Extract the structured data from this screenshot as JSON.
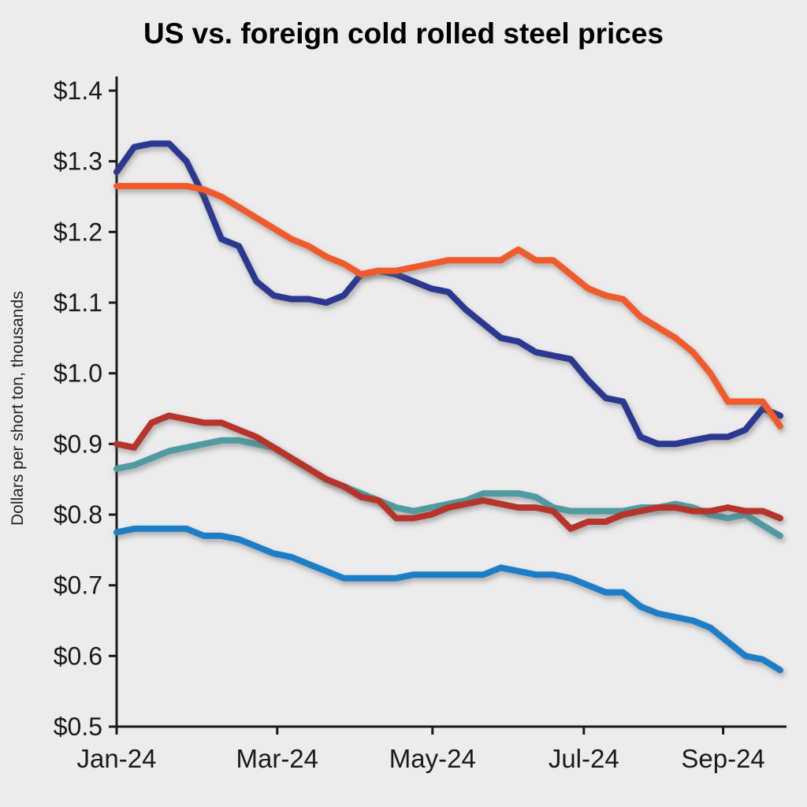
{
  "chart_data": {
    "type": "line",
    "title": "US vs. foreign cold rolled steel prices",
    "ylabel": "Dollars per short ton, thousands",
    "xlabel": "",
    "ylim": [
      0.5,
      1.4
    ],
    "grid": false,
    "legend": "none",
    "background_color": "#ececec",
    "axis_color": "#1a1a1a",
    "text_color": "#1a1a1a",
    "x_count": 39,
    "x_ticks": [
      {
        "label": "Jan-24",
        "pos": 0.0
      },
      {
        "label": "Mar-24",
        "pos": 0.242
      },
      {
        "label": "May-24",
        "pos": 0.476
      },
      {
        "label": "Jul-24",
        "pos": 0.704
      },
      {
        "label": "Sep-24",
        "pos": 0.914
      }
    ],
    "y_ticks": [
      {
        "label": "$0.5",
        "value": 0.5
      },
      {
        "label": "$0.6",
        "value": 0.6
      },
      {
        "label": "$0.7",
        "value": 0.7
      },
      {
        "label": "$0.8",
        "value": 0.8
      },
      {
        "label": "$0.9",
        "value": 0.9
      },
      {
        "label": "$1.0",
        "value": 1.0
      },
      {
        "label": "$1.1",
        "value": 1.1
      },
      {
        "label": "$1.2",
        "value": 1.2
      },
      {
        "label": "$1.3",
        "value": 1.3
      },
      {
        "label": "$1.4",
        "value": 1.4
      }
    ],
    "series": [
      {
        "name": "blue-line",
        "color": "#1d7fc6",
        "values": [
          0.775,
          0.78,
          0.78,
          0.78,
          0.78,
          0.77,
          0.77,
          0.765,
          0.755,
          0.745,
          0.74,
          0.73,
          0.72,
          0.71,
          0.71,
          0.71,
          0.71,
          0.715,
          0.715,
          0.715,
          0.715,
          0.715,
          0.725,
          0.72,
          0.715,
          0.715,
          0.71,
          0.7,
          0.69,
          0.69,
          0.67,
          0.66,
          0.655,
          0.65,
          0.64,
          0.62,
          0.6,
          0.595,
          0.58
        ]
      },
      {
        "name": "teal-line",
        "color": "#4f9b9f",
        "values": [
          0.865,
          0.87,
          0.88,
          0.89,
          0.895,
          0.9,
          0.905,
          0.905,
          0.9,
          0.895,
          0.88,
          0.865,
          0.85,
          0.84,
          0.83,
          0.82,
          0.81,
          0.805,
          0.81,
          0.815,
          0.82,
          0.83,
          0.83,
          0.83,
          0.825,
          0.81,
          0.805,
          0.805,
          0.805,
          0.805,
          0.81,
          0.81,
          0.815,
          0.81,
          0.8,
          0.795,
          0.8,
          0.785,
          0.77
        ]
      },
      {
        "name": "dark-red-line",
        "color": "#b5342c",
        "values": [
          0.9,
          0.895,
          0.93,
          0.94,
          0.935,
          0.93,
          0.93,
          0.92,
          0.91,
          0.895,
          0.88,
          0.865,
          0.85,
          0.84,
          0.825,
          0.82,
          0.795,
          0.795,
          0.8,
          0.81,
          0.815,
          0.82,
          0.815,
          0.81,
          0.81,
          0.805,
          0.78,
          0.79,
          0.79,
          0.8,
          0.805,
          0.81,
          0.81,
          0.805,
          0.805,
          0.81,
          0.805,
          0.805,
          0.795
        ]
      },
      {
        "name": "navy-line",
        "color": "#2b3990",
        "values": [
          1.285,
          1.32,
          1.325,
          1.325,
          1.3,
          1.25,
          1.19,
          1.18,
          1.13,
          1.11,
          1.105,
          1.105,
          1.1,
          1.11,
          1.14,
          1.145,
          1.14,
          1.13,
          1.12,
          1.115,
          1.09,
          1.07,
          1.05,
          1.045,
          1.03,
          1.025,
          1.02,
          0.99,
          0.965,
          0.96,
          0.91,
          0.9,
          0.9,
          0.905,
          0.91,
          0.91,
          0.92,
          0.95,
          0.94
        ]
      },
      {
        "name": "orange-line",
        "color": "#f15a29",
        "values": [
          1.265,
          1.265,
          1.265,
          1.265,
          1.265,
          1.26,
          1.25,
          1.235,
          1.22,
          1.205,
          1.19,
          1.18,
          1.165,
          1.155,
          1.14,
          1.145,
          1.145,
          1.15,
          1.155,
          1.16,
          1.16,
          1.16,
          1.16,
          1.175,
          1.16,
          1.16,
          1.14,
          1.12,
          1.11,
          1.105,
          1.08,
          1.065,
          1.05,
          1.03,
          1.0,
          0.96,
          0.96,
          0.96,
          0.925
        ]
      }
    ]
  }
}
